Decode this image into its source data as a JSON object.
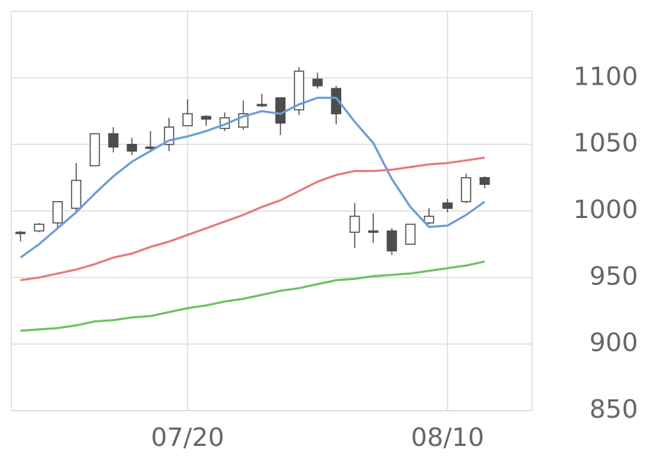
{
  "chart_data": {
    "type": "candlestick",
    "categories": [
      null,
      null,
      null,
      null,
      null,
      null,
      null,
      null,
      null,
      "07/20",
      null,
      null,
      null,
      null,
      null,
      null,
      null,
      null,
      null,
      null,
      null,
      null,
      null,
      "08/10",
      null,
      null
    ],
    "open": [
      984,
      985,
      991,
      1002,
      1034,
      1058,
      1050,
      1048,
      1050,
      1064,
      1071,
      1062,
      1063,
      1080,
      1085,
      1076,
      1099,
      1092,
      984,
      985,
      985,
      975,
      991,
      1006,
      1007,
      1025
    ],
    "high": [
      985,
      991,
      1007,
      1036,
      1058,
      1063,
      1055,
      1060,
      1070,
      1084,
      1072,
      1074,
      1083,
      1088,
      1085,
      1108,
      1104,
      1094,
      1006,
      998,
      987,
      990,
      1002,
      1009,
      1028,
      1026
    ],
    "low": [
      977,
      984,
      986,
      999,
      1034,
      1044,
      1042,
      1044,
      1045,
      1064,
      1064,
      1060,
      1061,
      1078,
      1057,
      1072,
      1092,
      1065,
      972,
      976,
      967,
      975,
      990,
      999,
      1006,
      1017
    ],
    "close": [
      983,
      990,
      1007,
      1023,
      1058,
      1048,
      1045,
      1047,
      1063,
      1073,
      1069,
      1070,
      1073,
      1079,
      1066,
      1105,
      1094,
      1073,
      996,
      984,
      970,
      990,
      996,
      1002,
      1025,
      1020
    ],
    "up_color": "#ffffff",
    "down_color": "#4d4d4d",
    "candle_stroke": "#4d4d4d",
    "series": [
      {
        "color": "#6a9bd8",
        "values": [
          965,
          975,
          987,
          999,
          1013,
          1026,
          1037,
          1045,
          1053,
          1056,
          1060,
          1065,
          1071,
          1075,
          1073,
          1080,
          1085,
          1085,
          1067,
          1051,
          1024,
          1003,
          988,
          989,
          997,
          1007
        ]
      },
      {
        "color": "#e57a7a",
        "values": [
          948,
          950,
          953,
          956,
          960,
          965,
          968,
          973,
          977,
          982,
          987,
          992,
          997,
          1003,
          1008,
          1015,
          1022,
          1027,
          1030,
          1030,
          1031,
          1033,
          1035,
          1036,
          1038,
          1040
        ]
      },
      {
        "color": "#6cbf63",
        "values": [
          910,
          911,
          912,
          914,
          917,
          918,
          920,
          921,
          924,
          927,
          929,
          932,
          934,
          937,
          940,
          942,
          945,
          948,
          949,
          951,
          952,
          953,
          955,
          957,
          959,
          962
        ]
      }
    ],
    "ylim": [
      850,
      1150
    ],
    "yticks": [
      850,
      900,
      950,
      1000,
      1050,
      1100
    ],
    "grid": true
  }
}
